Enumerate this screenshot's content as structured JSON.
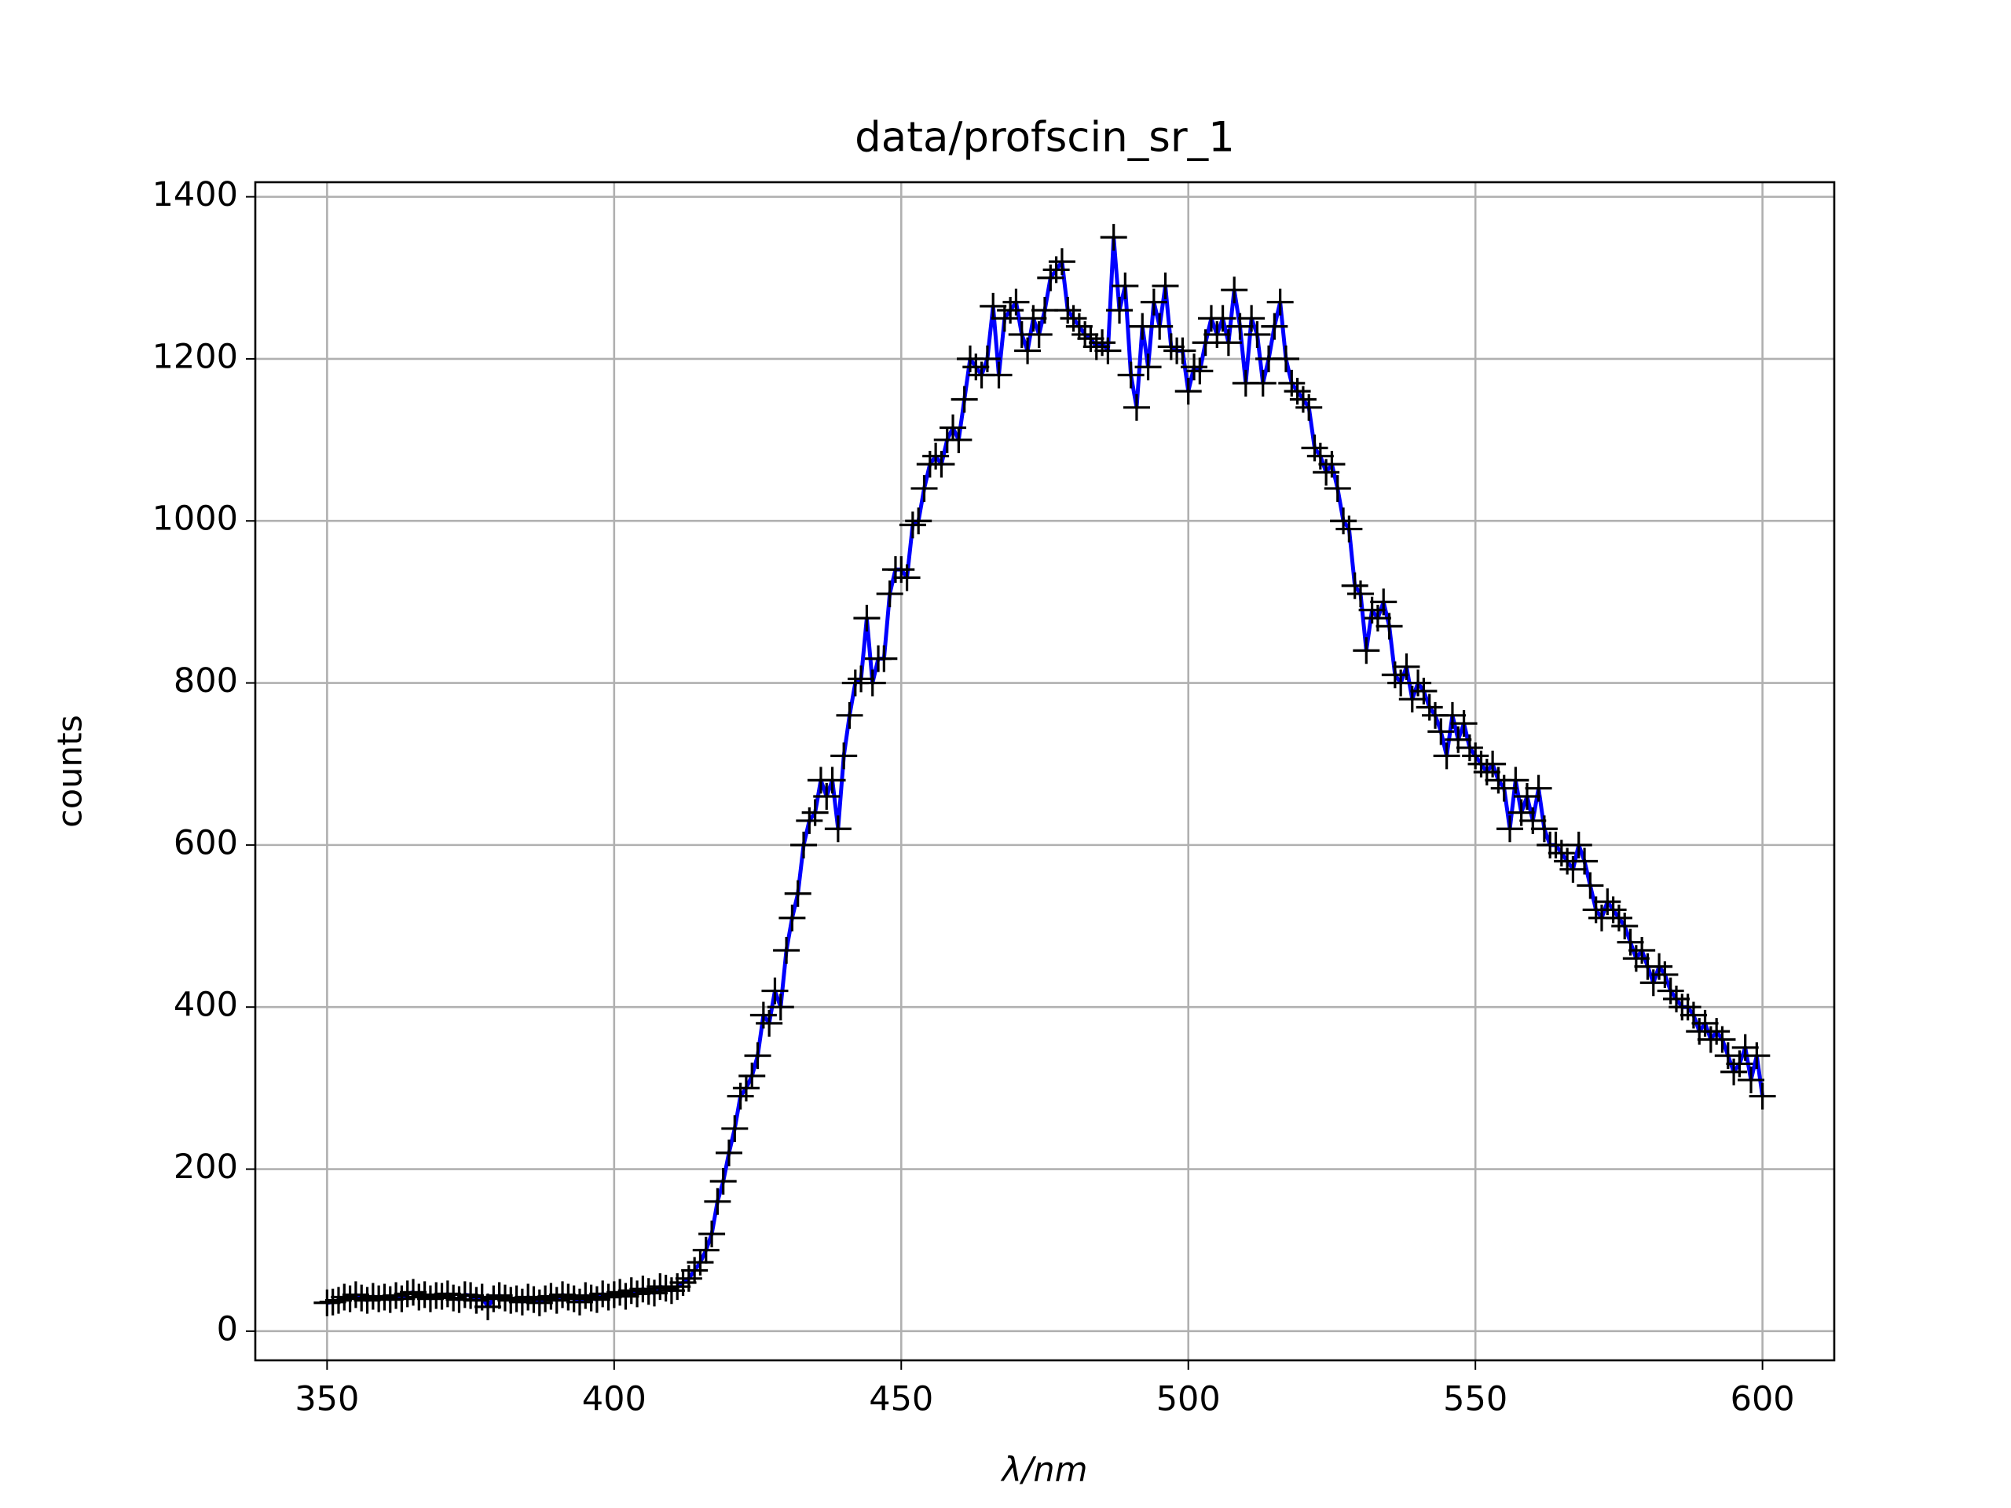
{
  "chart_data": {
    "type": "line",
    "title": "data/profscin_sr_1",
    "xlabel": "λ/nm",
    "ylabel": "counts",
    "x": [
      350,
      351,
      352,
      353,
      354,
      355,
      356,
      357,
      358,
      359,
      360,
      361,
      362,
      363,
      364,
      365,
      366,
      367,
      368,
      369,
      370,
      371,
      372,
      373,
      374,
      375,
      376,
      377,
      378,
      379,
      380,
      381,
      382,
      383,
      384,
      385,
      386,
      387,
      388,
      389,
      390,
      391,
      392,
      393,
      394,
      395,
      396,
      397,
      398,
      399,
      400,
      401,
      402,
      403,
      404,
      405,
      406,
      407,
      408,
      409,
      410,
      411,
      412,
      413,
      414,
      415,
      416,
      417,
      418,
      419,
      420,
      421,
      422,
      423,
      424,
      425,
      426,
      427,
      428,
      429,
      430,
      431,
      432,
      433,
      434,
      435,
      436,
      437,
      438,
      439,
      440,
      441,
      442,
      443,
      444,
      445,
      446,
      447,
      448,
      449,
      450,
      451,
      452,
      453,
      454,
      455,
      456,
      457,
      458,
      459,
      460,
      461,
      462,
      463,
      464,
      465,
      466,
      467,
      468,
      469,
      470,
      471,
      472,
      473,
      474,
      475,
      476,
      477,
      478,
      479,
      480,
      481,
      482,
      483,
      484,
      485,
      486,
      487,
      488,
      489,
      490,
      491,
      492,
      493,
      494,
      495,
      496,
      497,
      498,
      499,
      500,
      501,
      502,
      503,
      504,
      505,
      506,
      507,
      508,
      509,
      510,
      511,
      512,
      513,
      514,
      515,
      516,
      517,
      518,
      519,
      520,
      521,
      522,
      523,
      524,
      525,
      526,
      527,
      528,
      529,
      530,
      531,
      532,
      533,
      534,
      535,
      536,
      537,
      538,
      539,
      540,
      541,
      542,
      543,
      544,
      545,
      546,
      547,
      548,
      549,
      550,
      551,
      552,
      553,
      554,
      555,
      556,
      557,
      558,
      559,
      560,
      561,
      562,
      563,
      564,
      565,
      566,
      567,
      568,
      569,
      570,
      571,
      572,
      573,
      574,
      575,
      576,
      577,
      578,
      579,
      580,
      581,
      582,
      583,
      584,
      585,
      586,
      587,
      588,
      589,
      590,
      591,
      592,
      593,
      594,
      595,
      596,
      597,
      598,
      599,
      600
    ],
    "series": [
      {
        "color": "#0000ff",
        "marker_color": "#000000",
        "values": [
          35,
          36,
          38,
          42,
          40,
          45,
          41,
          38,
          43,
          40,
          42,
          39,
          44,
          40,
          46,
          48,
          42,
          45,
          40,
          44,
          43,
          46,
          41,
          39,
          45,
          44,
          38,
          42,
          30,
          40,
          44,
          41,
          38,
          40,
          36,
          42,
          39,
          35,
          40,
          43,
          38,
          45,
          42,
          40,
          36,
          44,
          41,
          39,
          46,
          42,
          45,
          48,
          43,
          50,
          46,
          52,
          49,
          47,
          55,
          53,
          50,
          55,
          60,
          65,
          75,
          85,
          100,
          120,
          160,
          185,
          220,
          250,
          290,
          300,
          315,
          340,
          390,
          380,
          420,
          400,
          470,
          510,
          540,
          600,
          630,
          640,
          680,
          660,
          680,
          620,
          710,
          760,
          800,
          805,
          880,
          800,
          830,
          830,
          910,
          940,
          940,
          930,
          995,
          1000,
          1040,
          1070,
          1080,
          1070,
          1100,
          1115,
          1100,
          1150,
          1200,
          1190,
          1180,
          1200,
          1265,
          1180,
          1250,
          1260,
          1270,
          1230,
          1210,
          1250,
          1230,
          1260,
          1300,
          1310,
          1320,
          1260,
          1250,
          1240,
          1230,
          1225,
          1215,
          1220,
          1210,
          1350,
          1260,
          1290,
          1180,
          1140,
          1240,
          1190,
          1270,
          1240,
          1290,
          1215,
          1210,
          1210,
          1160,
          1190,
          1185,
          1220,
          1250,
          1230,
          1250,
          1220,
          1285,
          1240,
          1170,
          1250,
          1230,
          1170,
          1200,
          1240,
          1270,
          1200,
          1170,
          1160,
          1150,
          1140,
          1090,
          1080,
          1060,
          1070,
          1040,
          1000,
          990,
          920,
          910,
          840,
          890,
          880,
          900,
          870,
          810,
          800,
          820,
          780,
          800,
          790,
          770,
          760,
          740,
          710,
          760,
          730,
          750,
          720,
          710,
          700,
          690,
          700,
          680,
          670,
          620,
          680,
          640,
          660,
          630,
          670,
          620,
          600,
          600,
          590,
          580,
          570,
          600,
          580,
          550,
          520,
          510,
          530,
          520,
          510,
          500,
          480,
          460,
          470,
          450,
          430,
          450,
          440,
          420,
          410,
          400,
          400,
          390,
          370,
          380,
          360,
          370,
          360,
          340,
          320,
          330,
          350,
          310,
          340,
          290
        ]
      }
    ],
    "xlim": [
      337.5,
      612.5
    ],
    "ylim": [
      -36,
      1418
    ],
    "xticks": [
      350,
      400,
      450,
      500,
      550,
      600
    ],
    "yticks": [
      0,
      200,
      400,
      600,
      800,
      1000,
      1200,
      1400
    ],
    "grid": true
  }
}
